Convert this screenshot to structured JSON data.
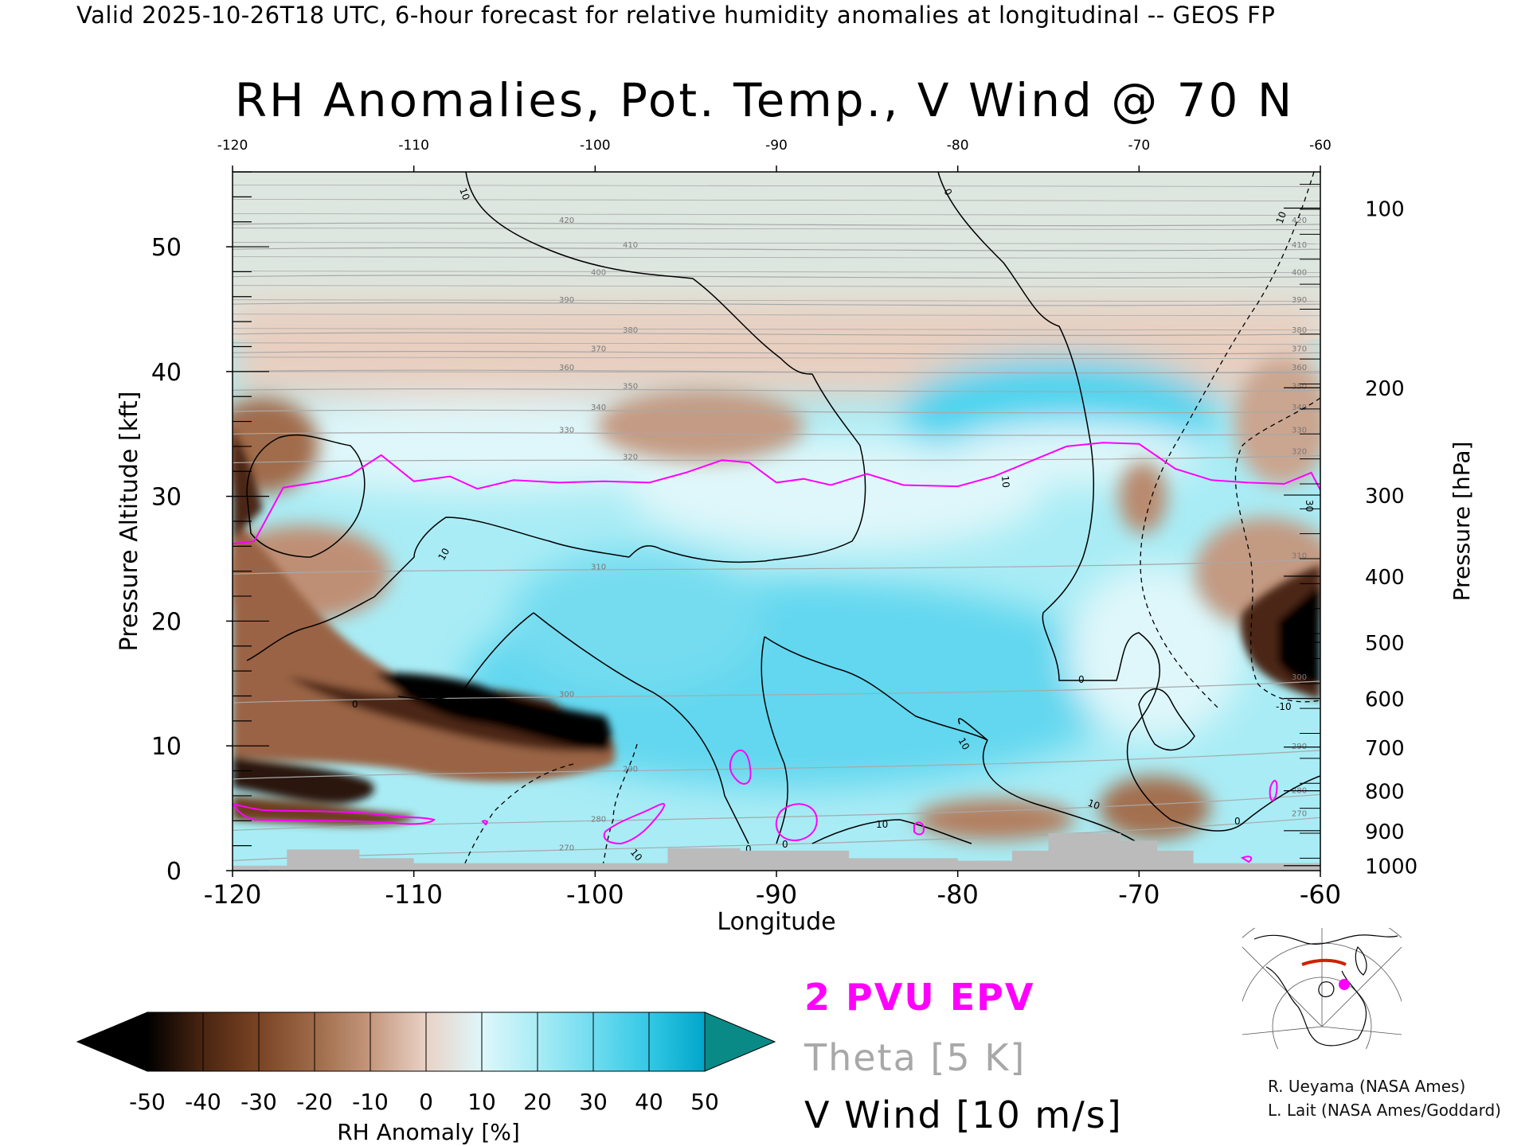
{
  "header": {
    "valid_line": "Valid 2025-10-26T18 UTC, 6-hour forecast for relative humidity anomalies at longitudinal -- GEOS FP",
    "title": "RH Anomalies, Pot. Temp., V Wind @ 70 N"
  },
  "chart_data": {
    "type": "heatmap",
    "title": "RH Anomalies, Pot. Temp., V Wind @ 70 N",
    "xlabel": "Longitude",
    "ylabel_left": "Pressure Altitude [kft]",
    "ylabel_right": "Pressure [hPa]",
    "xlim": [
      -120,
      -60
    ],
    "ylim": [
      0,
      56
    ],
    "x_ticks": [
      "-120",
      "-110",
      "-100",
      "-90",
      "-80",
      "-70",
      "-60"
    ],
    "x_tick_values": [
      -120,
      -110,
      -100,
      -90,
      -80,
      -70,
      -60
    ],
    "y_ticks_left": [
      "0",
      "10",
      "20",
      "30",
      "40",
      "50"
    ],
    "y_tick_values_left": [
      0,
      10,
      20,
      30,
      40,
      50
    ],
    "pressure_ticks": [
      {
        "label": "100",
        "kft": 53.1
      },
      {
        "label": "200",
        "kft": 38.7
      },
      {
        "label": "300",
        "kft": 30.1
      },
      {
        "label": "400",
        "kft": 23.6
      },
      {
        "label": "500",
        "kft": 18.3
      },
      {
        "label": "600",
        "kft": 13.8
      },
      {
        "label": "700",
        "kft": 9.9
      },
      {
        "label": "800",
        "kft": 6.4
      },
      {
        "label": "900",
        "kft": 3.2
      },
      {
        "label": "1000",
        "kft": 0.4
      }
    ],
    "colorbar": {
      "label": "RH Anomaly [%]",
      "ticks": [
        "-50",
        "-40",
        "-30",
        "-20",
        "-10",
        "0",
        "10",
        "20",
        "30",
        "40",
        "50"
      ],
      "colors": [
        "#000000",
        "#4a2511",
        "#7a4424",
        "#9e6a48",
        "#c4977c",
        "#e9d2c6",
        "#dff7fa",
        "#a9ecf5",
        "#6fdcef",
        "#33c8e6",
        "#00a6c9",
        "#0a7d98",
        "#0a8a86"
      ]
    },
    "theta_contours": [
      "270",
      "280",
      "290",
      "300",
      "310",
      "320",
      "330",
      "340",
      "350",
      "360",
      "370",
      "380",
      "390",
      "400",
      "410",
      "420"
    ],
    "theta_levels": [
      {
        "label": "270",
        "k": 270,
        "kft": 1.5
      },
      {
        "label": "280",
        "k": 280,
        "kft": 3.8
      },
      {
        "label": "290",
        "k": 290,
        "kft": 7.8
      },
      {
        "label": "300",
        "k": 300,
        "kft": 13.8
      },
      {
        "label": "310",
        "k": 310,
        "kft": 24.0
      },
      {
        "label": "320",
        "k": 320,
        "kft": 32.8
      },
      {
        "label": "330",
        "k": 330,
        "kft": 35.0
      },
      {
        "label": "340",
        "k": 340,
        "kft": 36.8
      },
      {
        "label": "350",
        "k": 350,
        "kft": 38.5
      },
      {
        "label": "360",
        "k": 360,
        "kft": 40.0
      },
      {
        "label": "370",
        "k": 370,
        "kft": 41.5
      },
      {
        "label": "380",
        "k": 380,
        "kft": 43.0
      },
      {
        "label": "390",
        "k": 390,
        "kft": 45.4
      },
      {
        "label": "400",
        "k": 400,
        "kft": 47.6
      },
      {
        "label": "410",
        "k": 410,
        "kft": 49.8
      },
      {
        "label": "420",
        "k": 420,
        "kft": 51.8
      }
    ],
    "vwind_contour_labels": [
      "-10",
      "0",
      "10",
      "30"
    ],
    "epv_2pvu": [
      {
        "lon": -120,
        "kft": 26.2
      },
      {
        "lon": -118.8,
        "kft": 26.4
      },
      {
        "lon": -117.2,
        "kft": 30.7
      },
      {
        "lon": -115,
        "kft": 31.2
      },
      {
        "lon": -113.5,
        "kft": 31.7
      },
      {
        "lon": -111.8,
        "kft": 33.3
      },
      {
        "lon": -110,
        "kft": 31.2
      },
      {
        "lon": -108,
        "kft": 31.6
      },
      {
        "lon": -106.5,
        "kft": 30.6
      },
      {
        "lon": -104.5,
        "kft": 31.3
      },
      {
        "lon": -102,
        "kft": 31.1
      },
      {
        "lon": -99.5,
        "kft": 31.2
      },
      {
        "lon": -97,
        "kft": 31.1
      },
      {
        "lon": -95,
        "kft": 31.9
      },
      {
        "lon": -93,
        "kft": 32.9
      },
      {
        "lon": -91.5,
        "kft": 32.7
      },
      {
        "lon": -90,
        "kft": 31.1
      },
      {
        "lon": -88.5,
        "kft": 31.4
      },
      {
        "lon": -87,
        "kft": 30.9
      },
      {
        "lon": -85,
        "kft": 31.8
      },
      {
        "lon": -83,
        "kft": 30.9
      },
      {
        "lon": -80,
        "kft": 30.8
      },
      {
        "lon": -78,
        "kft": 31.6
      },
      {
        "lon": -76,
        "kft": 32.8
      },
      {
        "lon": -74,
        "kft": 34.0
      },
      {
        "lon": -72,
        "kft": 34.3
      },
      {
        "lon": -70,
        "kft": 34.2
      },
      {
        "lon": -68,
        "kft": 32.2
      },
      {
        "lon": -66,
        "kft": 31.3
      },
      {
        "lon": -64,
        "kft": 31.1
      },
      {
        "lon": -62,
        "kft": 31.0
      },
      {
        "lon": -60.5,
        "kft": 31.9
      },
      {
        "lon": -60,
        "kft": 30.5
      }
    ],
    "terrain": [
      {
        "lon": -120,
        "kft": 0.4
      },
      {
        "lon": -117,
        "kft": 1.7
      },
      {
        "lon": -113,
        "kft": 1.0
      },
      {
        "lon": -110,
        "kft": 0.6
      },
      {
        "lon": -100,
        "kft": 0.6
      },
      {
        "lon": -96,
        "kft": 1.8
      },
      {
        "lon": -92,
        "kft": 1.6
      },
      {
        "lon": -86,
        "kft": 1.0
      },
      {
        "lon": -80,
        "kft": 0.8
      },
      {
        "lon": -77,
        "kft": 1.6
      },
      {
        "lon": -75,
        "kft": 3.0
      },
      {
        "lon": -71,
        "kft": 2.4
      },
      {
        "lon": -69,
        "kft": 1.6
      },
      {
        "lon": -67,
        "kft": 0.6
      },
      {
        "lon": -60,
        "kft": 0.4
      }
    ]
  },
  "legend": {
    "epv": "2 PVU EPV",
    "theta": "Theta [5 K]",
    "vwind": "V Wind [10 m/s]"
  },
  "credits": {
    "line1": "R. Ueyama (NASA Ames)",
    "line2": "L. Lait (NASA Ames/Goddard)"
  },
  "colors": {
    "epv": "#ff00ff",
    "theta": "#a8a8a8",
    "terrain": "#bbbbbb",
    "inset_marker": "#ff00ff",
    "inset_section": "#cc2200"
  }
}
